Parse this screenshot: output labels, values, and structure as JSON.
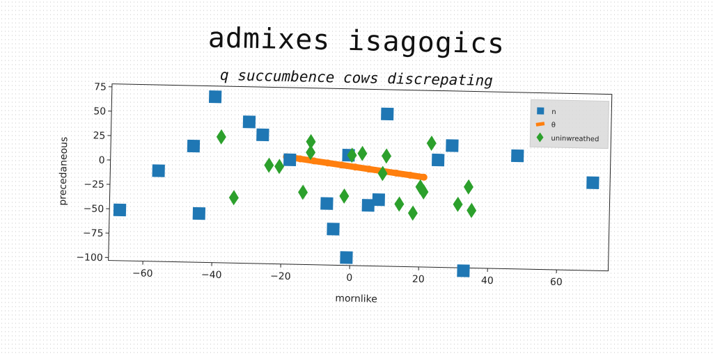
{
  "title": "admixes isagogics",
  "chart_data": {
    "type": "scatter",
    "title": "q succumbence cows discrepating",
    "xlabel": "mornlike",
    "ylabel": "precedaneous",
    "xlim": [
      -70,
      75
    ],
    "ylim": [
      -103,
      78
    ],
    "xticks": [
      -60,
      -40,
      -20,
      0,
      20,
      40,
      60
    ],
    "yticks": [
      -100,
      -75,
      -50,
      -25,
      0,
      25,
      50,
      75
    ],
    "grid": false,
    "legend_position": "top-right",
    "series": [
      {
        "name": "n",
        "marker": "square",
        "color": "#1f77b4",
        "points": [
          [
            -40,
            67
          ],
          [
            -30,
            42
          ],
          [
            -26,
            29
          ],
          [
            -46,
            16
          ],
          [
            -56,
            -10
          ],
          [
            -67,
            -51
          ],
          [
            -44,
            -53
          ],
          [
            -18,
            4
          ],
          [
            -1,
            10
          ],
          [
            10,
            53
          ],
          [
            29,
            22
          ],
          [
            25,
            7
          ],
          [
            48,
            13
          ],
          [
            70,
            -13
          ],
          [
            -7,
            -40
          ],
          [
            -5,
            -66
          ],
          [
            -1,
            -95
          ],
          [
            5,
            -41
          ],
          [
            8,
            -35
          ],
          [
            33,
            -106
          ]
        ]
      },
      {
        "name": "θ",
        "marker": "line",
        "color": "#ff7f0e",
        "x": [
          -19,
          -15,
          -11,
          -7,
          -3,
          1,
          5,
          9,
          13,
          17,
          21
        ],
        "y": [
          7,
          5.2,
          3.4,
          1.6,
          -0.2,
          -2,
          -3.8,
          -5.6,
          -7.4,
          -9.2,
          -11
        ]
      },
      {
        "name": "uninwreathed",
        "marker": "diamond",
        "color": "#2ca02c",
        "points": [
          [
            -38,
            26
          ],
          [
            -24,
            -2
          ],
          [
            -21,
            -3
          ],
          [
            -12,
            23
          ],
          [
            -12,
            12
          ],
          [
            0,
            10
          ],
          [
            3,
            12
          ],
          [
            10,
            10
          ],
          [
            9,
            -8
          ],
          [
            23,
            24
          ],
          [
            -34,
            -36
          ],
          [
            -14,
            -29
          ],
          [
            -2,
            -32
          ],
          [
            14,
            -39
          ],
          [
            18,
            -48
          ],
          [
            20,
            -21
          ],
          [
            21,
            -26
          ],
          [
            31,
            -38
          ],
          [
            34,
            -20
          ],
          [
            35,
            -44
          ]
        ]
      }
    ]
  }
}
